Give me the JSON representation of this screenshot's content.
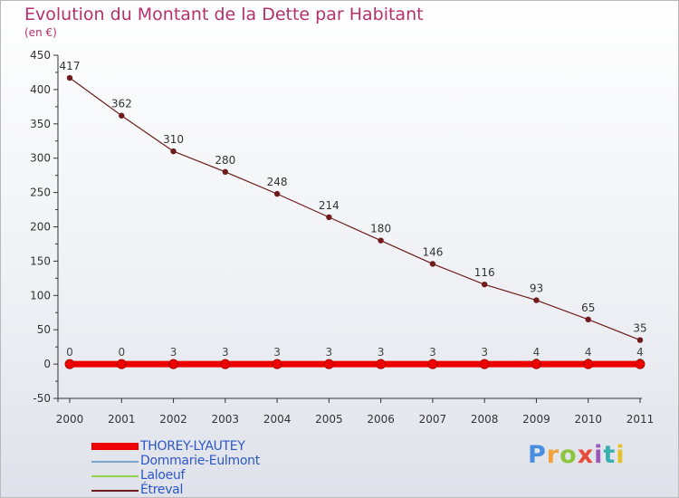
{
  "chart_data": {
    "type": "line",
    "title": "Evolution du Montant de la Dette par Habitant",
    "ylabel": "(en €)",
    "xlabel": "",
    "categories": [
      "2000",
      "2001",
      "2002",
      "2003",
      "2004",
      "2005",
      "2006",
      "2007",
      "2008",
      "2009",
      "2010",
      "2011"
    ],
    "ylim": [
      -50,
      450
    ],
    "yticks": [
      -50,
      0,
      50,
      100,
      150,
      200,
      250,
      300,
      350,
      400,
      450
    ],
    "grid": false,
    "series": [
      {
        "name": "THOREY-LYAUTEY",
        "color": "#ee0000",
        "values": [
          0,
          0,
          0,
          0,
          0,
          0,
          0,
          0,
          0,
          0,
          0,
          0
        ],
        "labels": false
      },
      {
        "name": "Dommarie-Eulmont",
        "color": "#7aa3c7",
        "values": [
          0,
          0,
          3,
          3,
          3,
          3,
          3,
          3,
          3,
          4,
          4,
          4
        ],
        "labels": false
      },
      {
        "name": "Laloeuf",
        "color": "#8fd44a",
        "values": [
          0,
          0,
          3,
          3,
          3,
          3,
          3,
          3,
          3,
          3,
          2,
          2
        ],
        "labels": false
      },
      {
        "name": "Étreval",
        "color": "#6e1b1b",
        "values": [
          417,
          362,
          310,
          280,
          248,
          214,
          180,
          146,
          116,
          93,
          65,
          35
        ],
        "labels": true
      }
    ],
    "small_labels": [
      "0",
      "0",
      "3",
      "3",
      "3",
      "3",
      "3",
      "3",
      "3",
      "4",
      "4",
      "4"
    ]
  },
  "logo": {
    "text": "Proxiti",
    "colors": [
      "#4a8ee0",
      "#f2a23a",
      "#8cc63f",
      "#e64b3c",
      "#9b59b6",
      "#3bb0b0",
      "#e6c02a"
    ]
  }
}
